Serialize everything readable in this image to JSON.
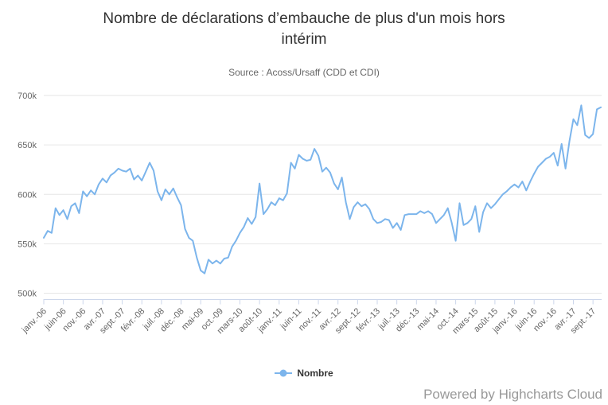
{
  "chart_data": {
    "type": "line",
    "title": "Nombre de déclarations d’embauche de plus d'un mois hors intérim",
    "subtitle": "Source : Acoss/Ursaff (CDD et CDI)",
    "credit": "Powered by Highcharts Cloud",
    "grid": true,
    "legend_position": "bottom-center",
    "x_axis": {
      "start_month": "2006-01",
      "end_month": "2017-11",
      "step": "1 month",
      "tick_interval_months": 5,
      "tick_labels": [
        "janv.-06",
        "juin-06",
        "nov.-06",
        "avr.-07",
        "sept.-07",
        "févr.-08",
        "juil.-08",
        "déc.-08",
        "mai-09",
        "oct.-09",
        "mars-10",
        "août-10",
        "janv.-11",
        "juin-11",
        "nov.-11",
        "avr.-12",
        "sept.-12",
        "févr.-13",
        "juil.-13",
        "déc.-13",
        "mai-14",
        "oct.-14",
        "mars-15",
        "août-15",
        "janv.-16",
        "juin-16",
        "nov.-16",
        "avr.-17",
        "sept.-17"
      ]
    },
    "y_axis": {
      "tick_labels": [
        "500k",
        "550k",
        "600k",
        "650k",
        "700k"
      ],
      "tick_values_k": [
        500,
        550,
        600,
        650,
        700
      ],
      "ylim_k": [
        500,
        700
      ],
      "unit": "declarations, k = thousands"
    },
    "series": [
      {
        "name": "Nombre",
        "color": "#7cb5ec",
        "values_k": [
          556,
          563,
          561,
          586,
          579,
          584,
          575,
          588,
          591,
          581,
          603,
          598,
          604,
          600,
          610,
          616,
          612,
          619,
          622,
          626,
          624,
          623,
          626,
          615,
          619,
          614,
          623,
          632,
          624,
          603,
          594,
          605,
          600,
          606,
          597,
          589,
          565,
          556,
          553,
          536,
          523,
          520,
          534,
          530,
          533,
          530,
          535,
          536,
          547,
          553,
          561,
          567,
          576,
          570,
          577,
          611,
          580,
          585,
          592,
          589,
          596,
          594,
          601,
          632,
          626,
          640,
          636,
          634,
          635,
          646,
          639,
          623,
          627,
          622,
          611,
          605,
          617,
          592,
          575,
          587,
          592,
          588,
          590,
          585,
          575,
          571,
          572,
          575,
          574,
          566,
          571,
          564,
          579,
          580,
          580,
          580,
          583,
          581,
          583,
          580,
          571,
          575,
          579,
          586,
          571,
          553,
          591,
          569,
          571,
          575,
          588,
          562,
          582,
          591,
          586,
          590,
          595,
          600,
          603,
          607,
          610,
          607,
          613,
          604,
          613,
          621,
          628,
          632,
          636,
          638,
          642,
          629,
          651,
          626,
          654,
          676,
          670,
          690,
          660,
          657,
          661,
          686,
          688
        ]
      }
    ],
    "colors": {
      "series_line": "#7cb5ec",
      "gridline": "#e6e6e6",
      "axis_and_ticks": "#ccd6eb",
      "axis_labels": "#666666",
      "title_text": "#333333",
      "subtitle_text": "#666666",
      "credit_text": "#999999"
    }
  }
}
